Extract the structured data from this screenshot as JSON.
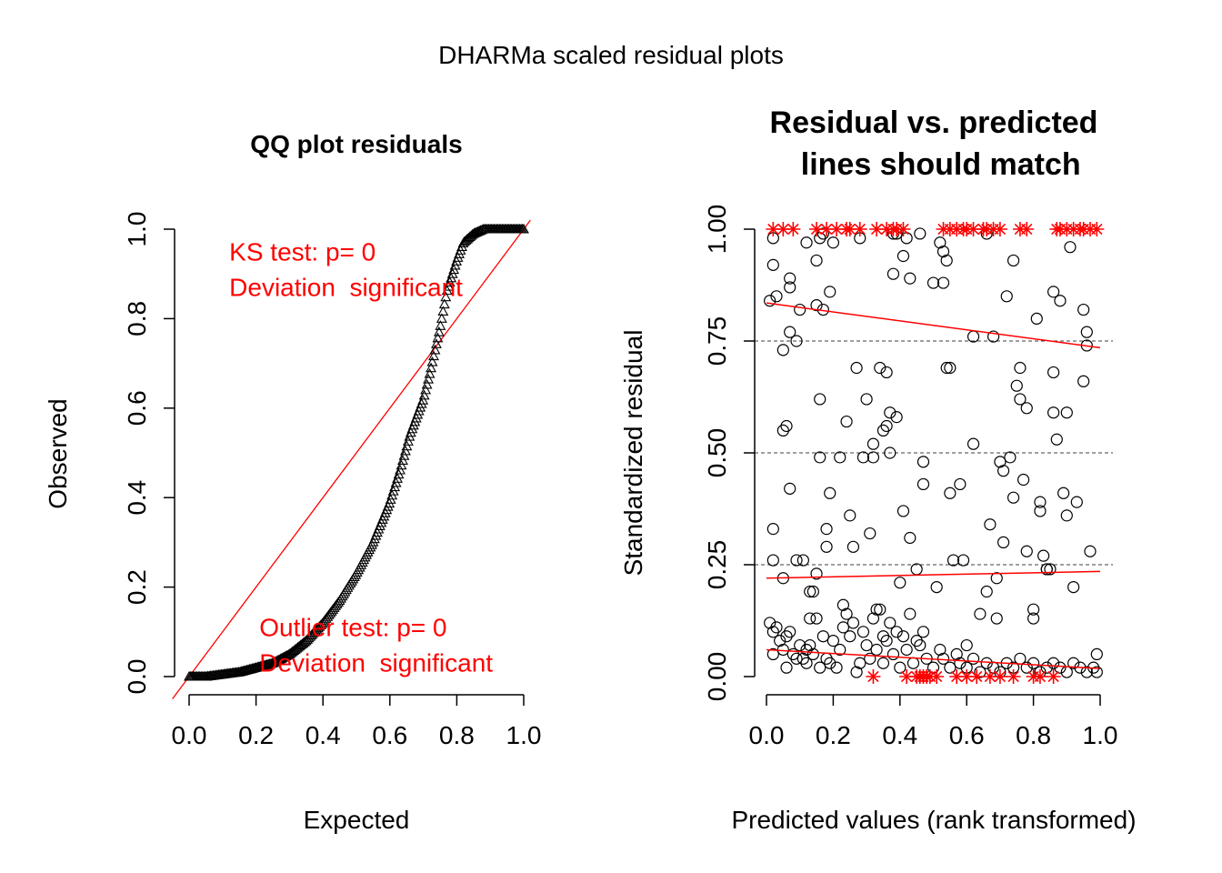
{
  "figure": {
    "title": "DHARMa scaled residual plots"
  },
  "colors": {
    "accent": "#ff0000",
    "points": "#000000",
    "background": "#ffffff",
    "grid": "#000000"
  },
  "chart_data": [
    {
      "type": "scatter",
      "marker": "triangle",
      "title": "QQ plot residuals",
      "xlabel": "Expected",
      "ylabel": "Observed",
      "xlim": [
        0,
        1
      ],
      "ylim": [
        0,
        1
      ],
      "x_ticks": [
        "0.0",
        "0.2",
        "0.4",
        "0.6",
        "0.8",
        "1.0"
      ],
      "y_ticks": [
        "0.0",
        "0.2",
        "0.4",
        "0.6",
        "0.8",
        "1.0"
      ],
      "reference_line": {
        "from": [
          0,
          0
        ],
        "to": [
          1,
          1
        ],
        "color": "#ff0000"
      },
      "annotations": [
        {
          "lines": [
            "KS test: p= 0",
            "Deviation  significant"
          ],
          "x": 0.12,
          "y": 0.93,
          "color": "#ff0000"
        },
        {
          "lines": [
            "Outlier test: p= 0",
            "Deviation  significant"
          ],
          "x": 0.21,
          "y": 0.09,
          "color": "#ff0000"
        }
      ],
      "qq_curve": {
        "expected": [
          0.0,
          0.05,
          0.1,
          0.15,
          0.2,
          0.25,
          0.3,
          0.35,
          0.4,
          0.45,
          0.5,
          0.55,
          0.6,
          0.63,
          0.66,
          0.7,
          0.72,
          0.75,
          0.77,
          0.8,
          0.82,
          0.85,
          0.88,
          1.0
        ],
        "observed": [
          0.0,
          0.0,
          0.005,
          0.01,
          0.02,
          0.03,
          0.05,
          0.08,
          0.12,
          0.17,
          0.23,
          0.3,
          0.39,
          0.46,
          0.54,
          0.62,
          0.68,
          0.78,
          0.86,
          0.93,
          0.97,
          0.99,
          1.0,
          1.0
        ]
      }
    },
    {
      "type": "scatter",
      "marker": "circle",
      "title": "Residual vs. predicted\n lines should match",
      "title_lines": [
        "Residual vs. predicted",
        " lines should match"
      ],
      "xlabel": "Predicted values (rank transformed)",
      "ylabel": "Standardized residual",
      "xlim": [
        0,
        1
      ],
      "ylim": [
        0,
        1
      ],
      "x_ticks": [
        "0.0",
        "0.2",
        "0.4",
        "0.6",
        "0.8",
        "1.0"
      ],
      "y_ticks": [
        "0.00",
        "0.25",
        "0.50",
        "0.75",
        "1.00"
      ],
      "horizontal_reference": [
        0.25,
        0.5,
        0.75
      ],
      "quantile_lines": [
        {
          "quantile": 0.25,
          "from": [
            0,
            0.22
          ],
          "to": [
            1,
            0.235
          ],
          "color": "#ff0000"
        },
        {
          "quantile": 0.5,
          "from": [
            0,
            0.835
          ],
          "to": [
            1,
            0.735
          ],
          "color": "#ff0000"
        },
        {
          "quantile": 0.75,
          "from": [
            0,
            0.06
          ],
          "to": [
            1,
            0.018
          ],
          "color": "#ff0000"
        }
      ],
      "outliers_marker": "asterisk",
      "outliers_color": "#ff0000",
      "outliers_top_x": [
        0.02,
        0.05,
        0.08,
        0.15,
        0.18,
        0.21,
        0.24,
        0.25,
        0.28,
        0.33,
        0.36,
        0.38,
        0.39,
        0.41,
        0.53,
        0.55,
        0.57,
        0.59,
        0.6,
        0.62,
        0.65,
        0.66,
        0.68,
        0.7,
        0.76,
        0.78,
        0.87,
        0.88,
        0.9,
        0.92,
        0.94,
        0.95,
        0.97,
        0.99
      ],
      "outliers_bottom_x": [
        0.32,
        0.42,
        0.45,
        0.46,
        0.47,
        0.48,
        0.49,
        0.51,
        0.57,
        0.6,
        0.63,
        0.67,
        0.7,
        0.74,
        0.8,
        0.82,
        0.86
      ],
      "points": [
        [
          0.01,
          0.84
        ],
        [
          0.02,
          0.98
        ],
        [
          0.02,
          0.92
        ],
        [
          0.02,
          0.33
        ],
        [
          0.02,
          0.26
        ],
        [
          0.03,
          0.85
        ],
        [
          0.05,
          0.73
        ],
        [
          0.05,
          0.55
        ],
        [
          0.05,
          0.22
        ],
        [
          0.06,
          0.56
        ],
        [
          0.07,
          0.89
        ],
        [
          0.07,
          0.87
        ],
        [
          0.07,
          0.77
        ],
        [
          0.07,
          0.42
        ],
        [
          0.09,
          0.75
        ],
        [
          0.09,
          0.26
        ],
        [
          0.1,
          0.82
        ],
        [
          0.11,
          0.26
        ],
        [
          0.12,
          0.97
        ],
        [
          0.13,
          0.19
        ],
        [
          0.13,
          0.13
        ],
        [
          0.14,
          0.19
        ],
        [
          0.15,
          0.93
        ],
        [
          0.15,
          0.83
        ],
        [
          0.15,
          0.23
        ],
        [
          0.16,
          0.98
        ],
        [
          0.16,
          0.62
        ],
        [
          0.16,
          0.49
        ],
        [
          0.17,
          0.99
        ],
        [
          0.17,
          0.82
        ],
        [
          0.18,
          0.33
        ],
        [
          0.18,
          0.29
        ],
        [
          0.19,
          0.86
        ],
        [
          0.19,
          0.41
        ],
        [
          0.2,
          0.97
        ],
        [
          0.22,
          0.49
        ],
        [
          0.23,
          0.16
        ],
        [
          0.24,
          0.57
        ],
        [
          0.25,
          0.36
        ],
        [
          0.26,
          0.29
        ],
        [
          0.27,
          0.69
        ],
        [
          0.28,
          0.98
        ],
        [
          0.29,
          0.49
        ],
        [
          0.3,
          0.62
        ],
        [
          0.31,
          0.32
        ],
        [
          0.32,
          0.52
        ],
        [
          0.32,
          0.49
        ],
        [
          0.33,
          0.15
        ],
        [
          0.34,
          0.69
        ],
        [
          0.35,
          0.55
        ],
        [
          0.35,
          0.09
        ],
        [
          0.36,
          0.68
        ],
        [
          0.36,
          0.56
        ],
        [
          0.37,
          0.59
        ],
        [
          0.37,
          0.5
        ],
        [
          0.38,
          0.9
        ],
        [
          0.38,
          0.99
        ],
        [
          0.39,
          0.99
        ],
        [
          0.39,
          0.58
        ],
        [
          0.4,
          0.21
        ],
        [
          0.41,
          0.94
        ],
        [
          0.41,
          0.37
        ],
        [
          0.42,
          0.98
        ],
        [
          0.43,
          0.89
        ],
        [
          0.43,
          0.31
        ],
        [
          0.45,
          0.24
        ],
        [
          0.46,
          0.99
        ],
        [
          0.47,
          0.48
        ],
        [
          0.47,
          0.43
        ],
        [
          0.5,
          0.88
        ],
        [
          0.51,
          0.2
        ],
        [
          0.52,
          0.97
        ],
        [
          0.53,
          0.95
        ],
        [
          0.53,
          0.88
        ],
        [
          0.54,
          0.69
        ],
        [
          0.54,
          0.93
        ],
        [
          0.55,
          0.69
        ],
        [
          0.55,
          0.41
        ],
        [
          0.56,
          0.26
        ],
        [
          0.58,
          0.43
        ],
        [
          0.59,
          0.26
        ],
        [
          0.6,
          0.07
        ],
        [
          0.62,
          0.76
        ],
        [
          0.62,
          0.52
        ],
        [
          0.64,
          0.14
        ],
        [
          0.66,
          0.99
        ],
        [
          0.66,
          0.19
        ],
        [
          0.67,
          0.34
        ],
        [
          0.68,
          0.76
        ],
        [
          0.69,
          0.22
        ],
        [
          0.69,
          0.13
        ],
        [
          0.7,
          0.48
        ],
        [
          0.71,
          0.46
        ],
        [
          0.71,
          0.3
        ],
        [
          0.72,
          0.85
        ],
        [
          0.73,
          0.49
        ],
        [
          0.74,
          0.93
        ],
        [
          0.74,
          0.4
        ],
        [
          0.75,
          0.65
        ],
        [
          0.76,
          0.69
        ],
        [
          0.76,
          0.62
        ],
        [
          0.77,
          0.44
        ],
        [
          0.78,
          0.28
        ],
        [
          0.78,
          0.6
        ],
        [
          0.8,
          0.15
        ],
        [
          0.8,
          0.13
        ],
        [
          0.81,
          0.8
        ],
        [
          0.82,
          0.37
        ],
        [
          0.82,
          0.39
        ],
        [
          0.83,
          0.27
        ],
        [
          0.84,
          0.24
        ],
        [
          0.84,
          0.24
        ],
        [
          0.85,
          0.24
        ],
        [
          0.86,
          0.86
        ],
        [
          0.86,
          0.68
        ],
        [
          0.86,
          0.59
        ],
        [
          0.87,
          0.53
        ],
        [
          0.88,
          0.84
        ],
        [
          0.89,
          0.41
        ],
        [
          0.9,
          0.59
        ],
        [
          0.9,
          0.36
        ],
        [
          0.91,
          0.96
        ],
        [
          0.92,
          0.2
        ],
        [
          0.93,
          0.39
        ],
        [
          0.95,
          0.82
        ],
        [
          0.95,
          0.66
        ],
        [
          0.96,
          0.77
        ],
        [
          0.96,
          0.74
        ],
        [
          0.97,
          0.28
        ],
        [
          0.01,
          0.12
        ],
        [
          0.02,
          0.1
        ],
        [
          0.02,
          0.05
        ],
        [
          0.03,
          0.11
        ],
        [
          0.04,
          0.08
        ],
        [
          0.05,
          0.06
        ],
        [
          0.06,
          0.09
        ],
        [
          0.06,
          0.02
        ],
        [
          0.07,
          0.1
        ],
        [
          0.08,
          0.05
        ],
        [
          0.09,
          0.04
        ],
        [
          0.1,
          0.07
        ],
        [
          0.11,
          0.04
        ],
        [
          0.12,
          0.06
        ],
        [
          0.12,
          0.03
        ],
        [
          0.13,
          0.07
        ],
        [
          0.14,
          0.05
        ],
        [
          0.15,
          0.13
        ],
        [
          0.16,
          0.02
        ],
        [
          0.17,
          0.09
        ],
        [
          0.18,
          0.04
        ],
        [
          0.19,
          0.03
        ],
        [
          0.2,
          0.08
        ],
        [
          0.21,
          0.02
        ],
        [
          0.22,
          0.06
        ],
        [
          0.23,
          0.11
        ],
        [
          0.24,
          0.14
        ],
        [
          0.25,
          0.09
        ],
        [
          0.26,
          0.12
        ],
        [
          0.27,
          0.01
        ],
        [
          0.28,
          0.03
        ],
        [
          0.29,
          0.1
        ],
        [
          0.3,
          0.07
        ],
        [
          0.31,
          0.04
        ],
        [
          0.32,
          0.13
        ],
        [
          0.33,
          0.06
        ],
        [
          0.34,
          0.15
        ],
        [
          0.35,
          0.03
        ],
        [
          0.36,
          0.08
        ],
        [
          0.37,
          0.12
        ],
        [
          0.38,
          0.05
        ],
        [
          0.39,
          0.1
        ],
        [
          0.4,
          0.02
        ],
        [
          0.41,
          0.09
        ],
        [
          0.42,
          0.06
        ],
        [
          0.43,
          0.14
        ],
        [
          0.44,
          0.03
        ],
        [
          0.45,
          0.08
        ],
        [
          0.46,
          0.07
        ],
        [
          0.47,
          0.1
        ],
        [
          0.48,
          0.04
        ],
        [
          0.5,
          0.02
        ],
        [
          0.52,
          0.06
        ],
        [
          0.53,
          0.04
        ],
        [
          0.55,
          0.02
        ],
        [
          0.57,
          0.05
        ],
        [
          0.58,
          0.03
        ],
        [
          0.6,
          0.02
        ],
        [
          0.62,
          0.04
        ],
        [
          0.64,
          0.01
        ],
        [
          0.66,
          0.03
        ],
        [
          0.68,
          0.02
        ],
        [
          0.7,
          0.01
        ],
        [
          0.72,
          0.03
        ],
        [
          0.74,
          0.02
        ],
        [
          0.76,
          0.04
        ],
        [
          0.78,
          0.02
        ],
        [
          0.8,
          0.03
        ],
        [
          0.82,
          0.01
        ],
        [
          0.84,
          0.02
        ],
        [
          0.86,
          0.03
        ],
        [
          0.88,
          0.02
        ],
        [
          0.9,
          0.01
        ],
        [
          0.92,
          0.03
        ],
        [
          0.94,
          0.02
        ],
        [
          0.96,
          0.01
        ],
        [
          0.98,
          0.02
        ],
        [
          0.99,
          0.05
        ],
        [
          0.99,
          0.01
        ]
      ]
    }
  ]
}
